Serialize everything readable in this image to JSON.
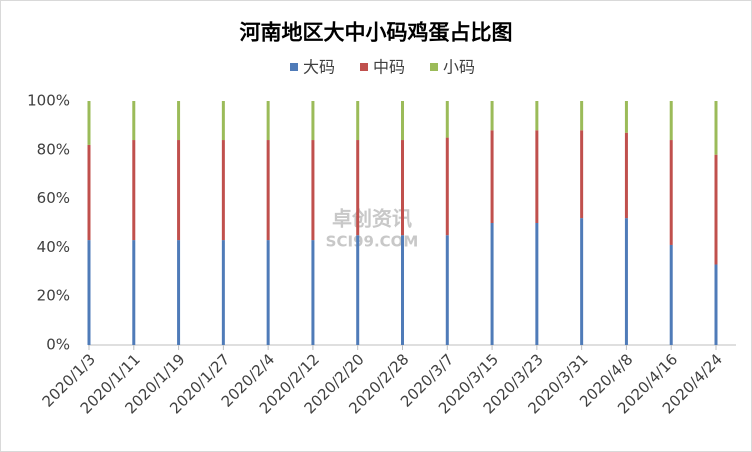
{
  "chart_data": {
    "type": "stacked_bar",
    "title": "河南地区大中小码鸡蛋占比图",
    "watermark": [
      "卓创资讯",
      "SCI99.COM"
    ],
    "categories": [
      "2020/1/3",
      "2020/1/11",
      "2020/1/19",
      "2020/1/27",
      "2020/2/4",
      "2020/2/12",
      "2020/2/20",
      "2020/2/28",
      "2020/3/7",
      "2020/3/15",
      "2020/3/23",
      "2020/3/31",
      "2020/4/8",
      "2020/4/16",
      "2020/4/24"
    ],
    "series": [
      {
        "name": "大码",
        "color": "#4f7bb8",
        "values": [
          43,
          43,
          43,
          43,
          43,
          43,
          45,
          45,
          45,
          50,
          50,
          52,
          52,
          41,
          33
        ]
      },
      {
        "name": "中码",
        "color": "#c0504d",
        "values": [
          39,
          41,
          41,
          41,
          41,
          41,
          39,
          39,
          40,
          38,
          38,
          36,
          35,
          43,
          45
        ]
      },
      {
        "name": "小码",
        "color": "#9bbb59",
        "values": [
          18,
          16,
          16,
          16,
          16,
          16,
          16,
          16,
          15,
          12,
          12,
          12,
          13,
          16,
          22
        ]
      }
    ],
    "ylim": [
      0,
      100
    ],
    "yticks": [
      {
        "value": 0,
        "label": "0%"
      },
      {
        "value": 20,
        "label": "20%"
      },
      {
        "value": 40,
        "label": "40%"
      },
      {
        "value": 60,
        "label": "60%"
      },
      {
        "value": 80,
        "label": "80%"
      },
      {
        "value": 100,
        "label": "100%"
      }
    ]
  }
}
